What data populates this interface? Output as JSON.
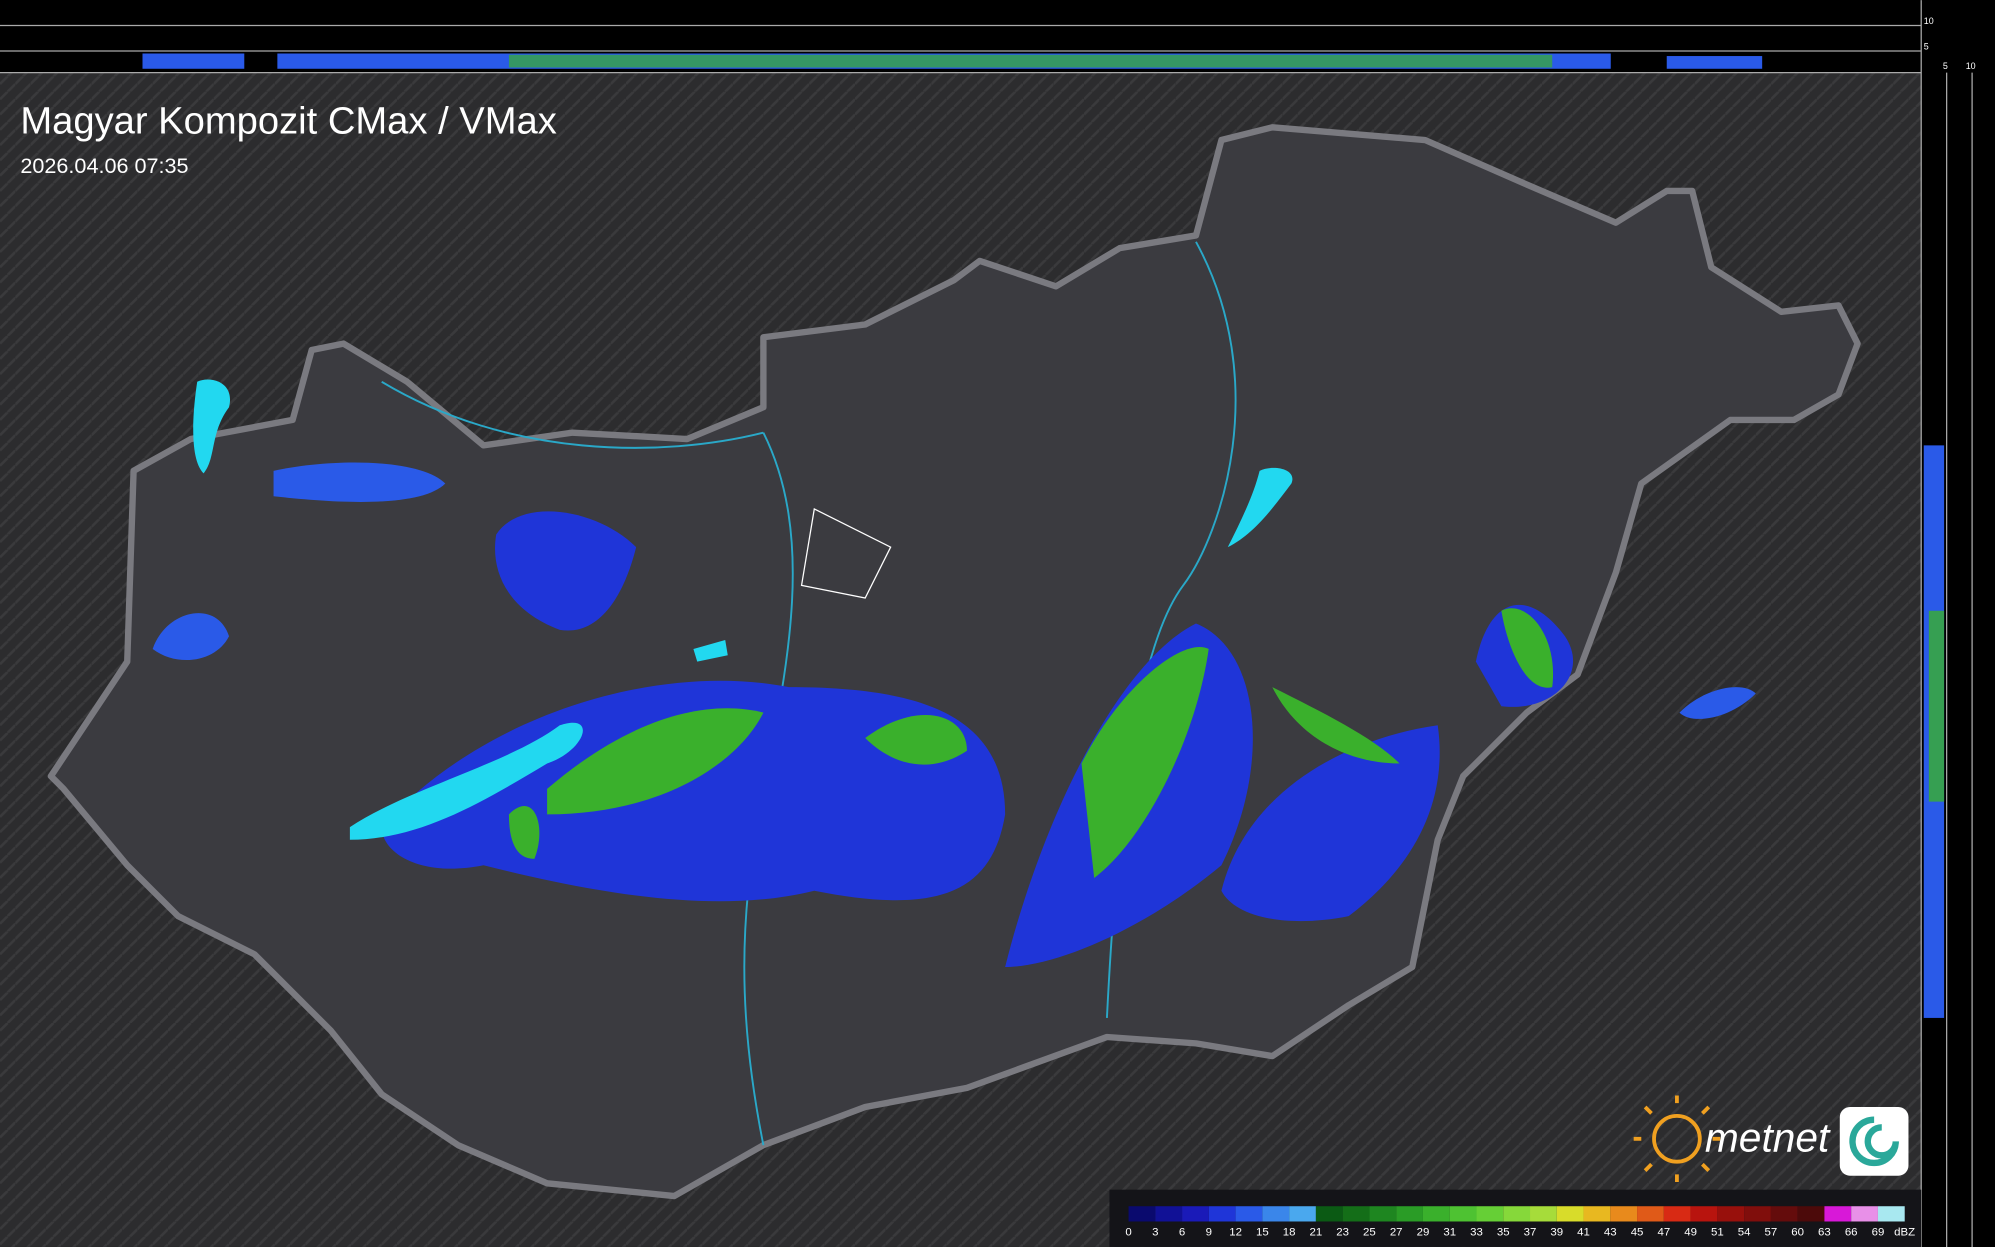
{
  "header": {
    "title": "Magyar Kompozit CMax / VMax",
    "timestamp": "2026.04.06 07:35"
  },
  "profile_axis": {
    "top_labels": [
      "10",
      "5"
    ],
    "side_labels": [
      "5",
      "10"
    ]
  },
  "legend": {
    "labels": [
      "0",
      "3",
      "6",
      "9",
      "12",
      "15",
      "18",
      "21",
      "23",
      "25",
      "27",
      "29",
      "31",
      "33",
      "35",
      "37",
      "39",
      "41",
      "43",
      "45",
      "47",
      "49",
      "51",
      "54",
      "57",
      "60",
      "63",
      "66",
      "69"
    ],
    "unit": "dBZ",
    "colors": [
      "#0a0a6e",
      "#111196",
      "#1a1ab8",
      "#1f35d8",
      "#2a5ae8",
      "#3a86ea",
      "#4aa8ee",
      "#0b5a14",
      "#146e18",
      "#1e8620",
      "#2a9c26",
      "#3ab02c",
      "#4ec232",
      "#66cf36",
      "#86d83a",
      "#a6dc3a",
      "#d8dc2a",
      "#e8b820",
      "#e88a1c",
      "#e05a18",
      "#d82a14",
      "#b8140e",
      "#98100c",
      "#800e0c",
      "#640c0c",
      "#4c0a0a",
      "#d818d8",
      "#e890e8",
      "#a8e8f0"
    ]
  },
  "logo": {
    "text": "metnet"
  }
}
